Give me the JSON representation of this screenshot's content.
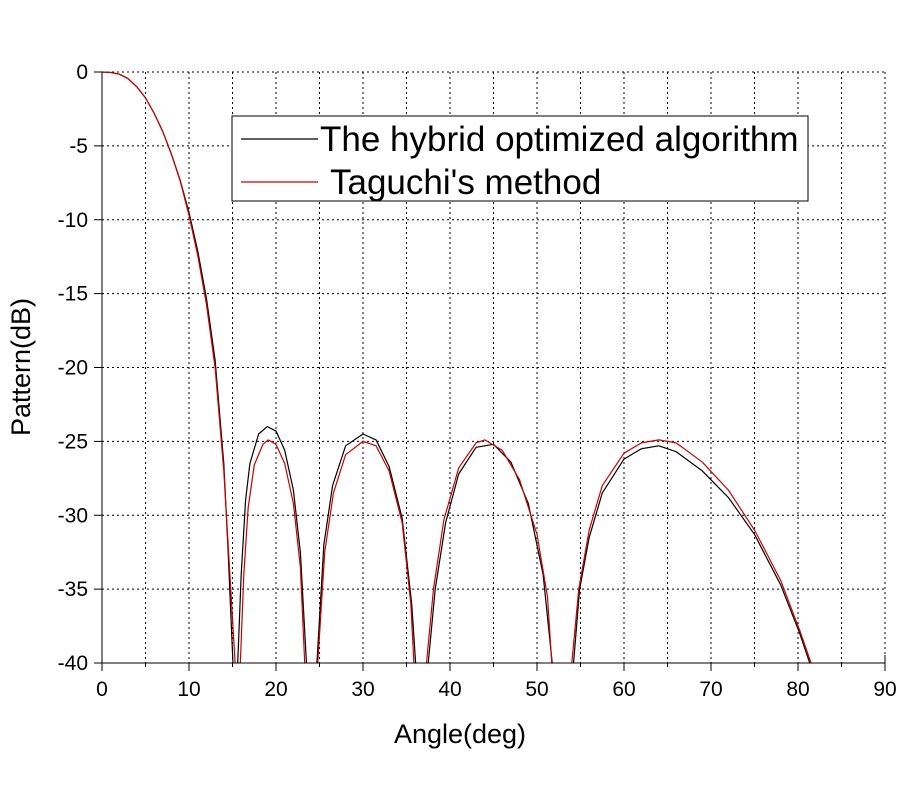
{
  "chart_data": {
    "type": "line",
    "title": "",
    "xlabel": "Angle(deg)",
    "ylabel": "Pattern(dB)",
    "xlim": [
      0,
      90
    ],
    "ylim": [
      -40,
      0
    ],
    "xticks": [
      0,
      10,
      20,
      30,
      40,
      50,
      60,
      70,
      80,
      90
    ],
    "yticks": [
      0,
      -5,
      -10,
      -15,
      -20,
      -25,
      -30,
      -35,
      -40
    ],
    "x_minor_step": 5,
    "grid": true,
    "legend_position": "top-right",
    "series": [
      {
        "name": "The hybrid optimized algorithm",
        "color": "#000000",
        "points": [
          [
            0,
            0
          ],
          [
            1,
            -0.03
          ],
          [
            2,
            -0.15
          ],
          [
            3,
            -0.45
          ],
          [
            4,
            -1.0
          ],
          [
            5,
            -1.75
          ],
          [
            6,
            -2.8
          ],
          [
            7,
            -4.05
          ],
          [
            8,
            -5.6
          ],
          [
            9,
            -7.35
          ],
          [
            10,
            -9.5
          ],
          [
            11,
            -12.1
          ],
          [
            12,
            -15.3
          ],
          [
            13,
            -19.5
          ],
          [
            14,
            -26.5
          ],
          [
            14.5,
            -32.5
          ],
          [
            15.05,
            -40
          ],
          null,
          [
            15.6,
            -40
          ],
          [
            16,
            -34.0
          ],
          [
            16.5,
            -29.0
          ],
          [
            17,
            -26.5
          ],
          [
            18,
            -24.5
          ],
          [
            19,
            -24.0
          ],
          [
            20,
            -24.3
          ],
          [
            21,
            -25.6
          ],
          [
            22,
            -28.3
          ],
          [
            22.8,
            -32.5
          ],
          [
            23.5,
            -40
          ],
          null,
          [
            24.7,
            -40
          ],
          [
            25.5,
            -32.0
          ],
          [
            26.5,
            -28.0
          ],
          [
            28,
            -25.3
          ],
          [
            30,
            -24.5
          ],
          [
            31.5,
            -24.9
          ],
          [
            33,
            -26.7
          ],
          [
            34.5,
            -30.2
          ],
          [
            35.6,
            -36.0
          ],
          [
            36.05,
            -40
          ],
          null,
          [
            37.5,
            -40
          ],
          [
            38.3,
            -35.0
          ],
          [
            39.5,
            -30.5
          ],
          [
            41,
            -27.2
          ],
          [
            43,
            -25.4
          ],
          [
            45,
            -25.2
          ],
          [
            47,
            -26.4
          ],
          [
            49,
            -29.2
          ],
          [
            50.7,
            -34.0
          ],
          [
            51.75,
            -40
          ],
          null,
          [
            54.2,
            -40
          ],
          [
            54.9,
            -35.0
          ],
          [
            56,
            -31.5
          ],
          [
            57.5,
            -28.5
          ],
          [
            60,
            -26.2
          ],
          [
            62,
            -25.5
          ],
          [
            64,
            -25.3
          ],
          [
            66,
            -25.7
          ],
          [
            69,
            -27.0
          ],
          [
            72,
            -28.8
          ],
          [
            75,
            -31.3
          ],
          [
            78,
            -34.7
          ],
          [
            80.2,
            -38.0
          ],
          [
            81.35,
            -40
          ]
        ]
      },
      {
        "name": "Taguchi's method",
        "color": "#cc0000",
        "points": [
          [
            0,
            0
          ],
          [
            1,
            -0.03
          ],
          [
            2,
            -0.15
          ],
          [
            3,
            -0.45
          ],
          [
            4,
            -1.0
          ],
          [
            5,
            -1.75
          ],
          [
            6,
            -2.8
          ],
          [
            7,
            -4.05
          ],
          [
            8,
            -5.6
          ],
          [
            9,
            -7.4
          ],
          [
            10,
            -9.7
          ],
          [
            11,
            -12.4
          ],
          [
            12,
            -15.7
          ],
          [
            13,
            -20.0
          ],
          [
            14,
            -27.0
          ],
          [
            14.6,
            -33.0
          ],
          [
            15.3,
            -40
          ],
          null,
          [
            15.9,
            -40
          ],
          [
            16.3,
            -34.0
          ],
          [
            16.8,
            -29.5
          ],
          [
            17.5,
            -26.6
          ],
          [
            18.5,
            -25.2
          ],
          [
            19.1,
            -24.9
          ],
          [
            20,
            -25.2
          ],
          [
            21,
            -26.5
          ],
          [
            22,
            -29.2
          ],
          [
            22.8,
            -33.5
          ],
          [
            23.3,
            -40
          ],
          null,
          [
            24.8,
            -40
          ],
          [
            25.6,
            -32.5
          ],
          [
            26.6,
            -28.5
          ],
          [
            28,
            -25.9
          ],
          [
            30,
            -25.0
          ],
          [
            31.5,
            -25.3
          ],
          [
            33,
            -27.0
          ],
          [
            34.5,
            -30.5
          ],
          [
            35.5,
            -36.0
          ],
          [
            35.85,
            -40
          ],
          null,
          [
            37.3,
            -40
          ],
          [
            38.1,
            -35.0
          ],
          [
            39.3,
            -30.3
          ],
          [
            41,
            -26.8
          ],
          [
            43,
            -25.1
          ],
          [
            44,
            -24.9
          ],
          [
            46,
            -25.6
          ],
          [
            48,
            -27.6
          ],
          [
            50,
            -31.3
          ],
          [
            51.2,
            -35.5
          ],
          [
            51.7,
            -40
          ],
          null,
          [
            54.0,
            -40
          ],
          [
            54.8,
            -35.0
          ],
          [
            56,
            -31.0
          ],
          [
            57.5,
            -28.0
          ],
          [
            60,
            -25.8
          ],
          [
            62,
            -25.1
          ],
          [
            64,
            -24.9
          ],
          [
            66,
            -25.1
          ],
          [
            69,
            -26.4
          ],
          [
            72,
            -28.3
          ],
          [
            75,
            -31.0
          ],
          [
            78,
            -34.4
          ],
          [
            80.2,
            -37.8
          ],
          [
            81.5,
            -40
          ]
        ]
      }
    ]
  }
}
